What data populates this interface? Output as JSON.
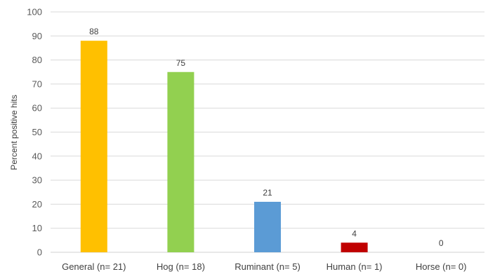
{
  "chart_data": {
    "type": "bar",
    "title": "",
    "xlabel": "",
    "ylabel": "Percent positive hits",
    "categories": [
      "General (n= 21)",
      "Hog (n= 18)",
      "Ruminant (n= 5)",
      "Human (n= 1)",
      "Horse (n= 0)"
    ],
    "values": [
      88,
      75,
      21,
      4,
      0
    ],
    "data_labels": [
      "88",
      "75",
      "21",
      "4",
      "0"
    ],
    "colors": [
      "#FFC000",
      "#92D050",
      "#5B9BD5",
      "#C00000",
      "#A5A5A5"
    ],
    "ylim": [
      0,
      100
    ],
    "yticks": [
      0,
      10,
      20,
      30,
      40,
      50,
      60,
      70,
      80,
      90,
      100
    ],
    "grid": true,
    "gridline_color": "#D9D9D9",
    "legend": false
  }
}
